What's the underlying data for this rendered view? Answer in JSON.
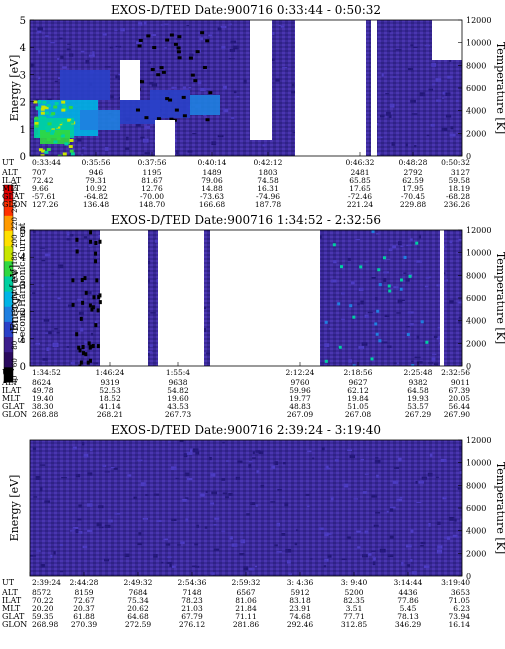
{
  "colors": {
    "scale": [
      "#000000",
      "#2a0a5e",
      "#3b1d8c",
      "#2a40c8",
      "#1f7fe0",
      "#00b4e6",
      "#00d0a0",
      "#30d840",
      "#c8e600",
      "#ffe000",
      "#ff9a00",
      "#ff3000",
      "#e00000"
    ],
    "bg": "#3b2a9a",
    "blank": "#ffffff"
  },
  "colorbar": {
    "label": "Second Harmonic Current",
    "ticks": [
      "40",
      "60",
      "80",
      "100",
      "120",
      "140",
      "160",
      "180",
      "200",
      "220",
      "240",
      "250"
    ]
  },
  "row_labels": [
    "UT",
    "ALT",
    "ILAT",
    "MLT",
    "GLAT",
    "GLON"
  ],
  "chart_data": [
    {
      "type": "heatmap",
      "title": "EXOS-D/TED   Date:900716   0:33:44 - 0:50:32",
      "ylabel": "Energy [eV]",
      "y2label": "Temperature [K]",
      "ylim": [
        0,
        5
      ],
      "y2lim": [
        0,
        12000
      ],
      "yticks": [
        "0",
        "1",
        "2",
        "3",
        "4",
        "5"
      ],
      "y2ticks": [
        "0",
        "2000",
        "4000",
        "6000",
        "8000",
        "10000",
        "12000"
      ],
      "columns": [
        [
          "0:33:44",
          "707",
          "72.42",
          "9.66",
          "-57.61",
          "127.26"
        ],
        [
          "0:35:56",
          "946",
          "79.31",
          "10.92",
          "-64.82",
          "136.48"
        ],
        [
          "0:37:56",
          "1195",
          "81.67",
          "12.76",
          "-70.00",
          "148.70"
        ],
        [
          "0:40:14",
          "1489",
          "79.06",
          "14.88",
          "-73.63",
          "166.68"
        ],
        [
          "0:42:12",
          "1803",
          "74.58",
          "16.31",
          "-74.96",
          "187.78"
        ],
        [
          "0:46:32",
          "2481",
          "65.85",
          "17.65",
          "-72.46",
          "221.24"
        ],
        [
          "0:48:28",
          "2792",
          "62.59",
          "17.95",
          "-70.45",
          "229.88"
        ],
        [
          "0:50:32",
          "3127",
          "59.58",
          "18.19",
          "-68.28",
          "236.26"
        ]
      ]
    },
    {
      "type": "heatmap",
      "title": "EXOS-D/TED   Date:900716   1:34:52 - 2:32:56",
      "ylabel": "Energy [eV]",
      "y2label": "Temperature [K]",
      "ylim": [
        0,
        5
      ],
      "y2lim": [
        0,
        12000
      ],
      "yticks": [
        "0",
        "1",
        "2",
        "3",
        "4",
        "5"
      ],
      "y2ticks": [
        "0",
        "2000",
        "4000",
        "6000",
        "8000",
        "10000",
        "12000"
      ],
      "columns": [
        [
          "1:34:52",
          "8624",
          "49.78",
          "19.40",
          "38.30",
          "268.88"
        ],
        [
          "1:46:24",
          "9319",
          "52.53",
          "18.52",
          "41.14",
          "268.21"
        ],
        [
          "1:55:4",
          "9638",
          "54.82",
          "19.60",
          "43.53",
          "267.73"
        ],
        [
          "2:12:24",
          "9760",
          "59.96",
          "19.77",
          "48.83",
          "267.09"
        ],
        [
          "2:18:56",
          "9627",
          "62.12",
          "19.84",
          "51.05",
          "267.08"
        ],
        [
          "2:25:48",
          "9382",
          "64.58",
          "19.93",
          "53.57",
          "267.29"
        ],
        [
          "2:32:56",
          "9011",
          "67.39",
          "20.05",
          "56.44",
          "267.90"
        ]
      ]
    },
    {
      "type": "heatmap",
      "title": "EXOS-D/TED   Date:900716   2:39:24 - 3:19:40",
      "ylabel": "Energy [eV]",
      "y2label": "Temperature [K]",
      "ylim": [
        0,
        5
      ],
      "y2lim": [
        0,
        12000
      ],
      "yticks": [],
      "y2ticks": [
        "0",
        "2000",
        "4000",
        "6000",
        "8000",
        "10000",
        "12000"
      ],
      "columns": [
        [
          "2:39:24",
          "8572",
          "70.22",
          "20.20",
          "59.35",
          "268.98"
        ],
        [
          "2:44:28",
          "8159",
          "72.67",
          "20.37",
          "61.88",
          "270.39"
        ],
        [
          "2:49:32",
          "7684",
          "75.34",
          "20.62",
          "64.68",
          "272.59"
        ],
        [
          "2:54:36",
          "7148",
          "78.23",
          "21.03",
          "67.79",
          "276.12"
        ],
        [
          "2:59:32",
          "6567",
          "81.06",
          "21.84",
          "71.11",
          "281.86"
        ],
        [
          "3: 4:36",
          "5912",
          "83.18",
          "23.91",
          "74.68",
          "292.46"
        ],
        [
          "3: 9:40",
          "5200",
          "82.35",
          "3.51",
          "77.71",
          "312.85"
        ],
        [
          "3:14:44",
          "4436",
          "77.86",
          "5.45",
          "78.13",
          "346.29"
        ],
        [
          "3:19:40",
          "3653",
          "71.05",
          "6.23",
          "73.94",
          "16.14"
        ]
      ]
    }
  ]
}
